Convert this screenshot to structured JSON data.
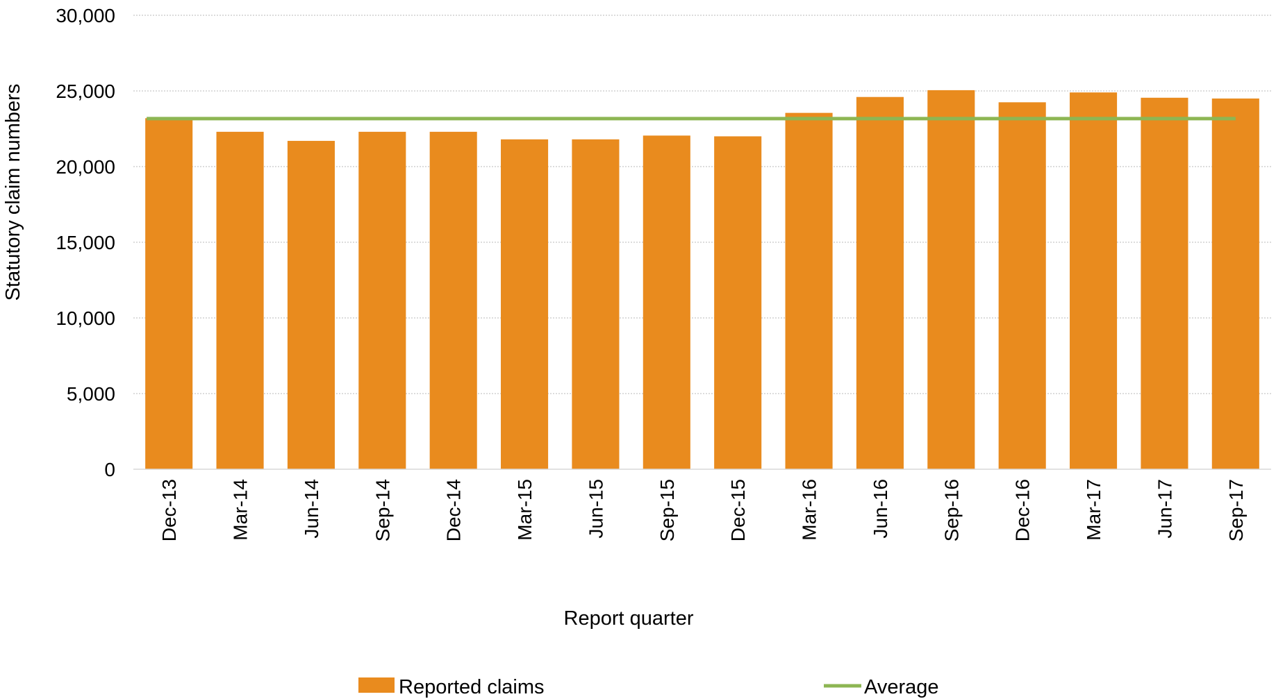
{
  "chart_data": {
    "type": "bar",
    "categories": [
      "Dec-13",
      "Mar-14",
      "Jun-14",
      "Sep-14",
      "Dec-14",
      "Mar-15",
      "Jun-15",
      "Sep-15",
      "Dec-15",
      "Mar-16",
      "Jun-16",
      "Sep-16",
      "Dec-16",
      "Mar-17",
      "Jun-17",
      "Sep-17"
    ],
    "series": [
      {
        "name": "Reported claims",
        "type": "bar",
        "color": "#E98B1E",
        "values": [
          23200,
          22300,
          21700,
          22300,
          22300,
          21800,
          21800,
          22050,
          22000,
          23550,
          24600,
          25050,
          24250,
          24900,
          24550,
          24500
        ]
      },
      {
        "name": "Average",
        "type": "line",
        "color": "#8DB653",
        "values": [
          23170,
          23170,
          23170,
          23170,
          23170,
          23170,
          23170,
          23170,
          23170,
          23170,
          23170,
          23170,
          23170,
          23170,
          23170,
          23170
        ]
      }
    ],
    "xlabel": "Report quarter",
    "ylabel": "Statutory claim numbers",
    "ylim": [
      0,
      30000
    ],
    "yticks": [
      0,
      5000,
      10000,
      15000,
      20000,
      25000,
      30000
    ],
    "ytick_labels": [
      "0",
      "5,000",
      "10,000",
      "15,000",
      "20,000",
      "25,000",
      "30,000"
    ],
    "grid": true,
    "legend_position": "bottom"
  }
}
